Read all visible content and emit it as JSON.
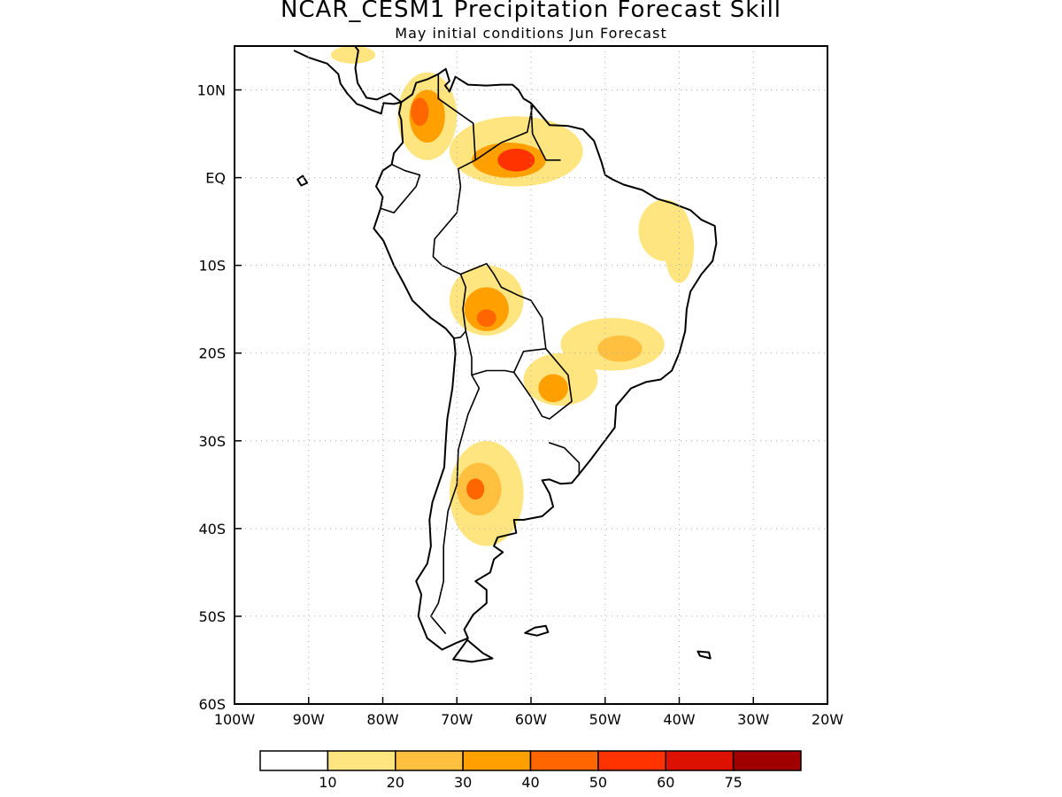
{
  "title": "NCAR_CESM1 Precipitation Forecast Skill",
  "subtitle": "May initial conditions  Jun Forecast",
  "map": {
    "lon_range": [
      -100,
      -20
    ],
    "lat_range": [
      -60,
      15
    ],
    "lon_ticks": [
      {
        "value": -100,
        "label": "100W"
      },
      {
        "value": -90,
        "label": "90W"
      },
      {
        "value": -80,
        "label": "80W"
      },
      {
        "value": -70,
        "label": "70W"
      },
      {
        "value": -60,
        "label": "60W"
      },
      {
        "value": -50,
        "label": "50W"
      },
      {
        "value": -40,
        "label": "40W"
      },
      {
        "value": -30,
        "label": "30W"
      },
      {
        "value": -20,
        "label": "20W"
      }
    ],
    "lat_ticks": [
      {
        "value": 10,
        "label": "10N"
      },
      {
        "value": 0,
        "label": "EQ"
      },
      {
        "value": -10,
        "label": "10S"
      },
      {
        "value": -20,
        "label": "20S"
      },
      {
        "value": -30,
        "label": "30S"
      },
      {
        "value": -40,
        "label": "40S"
      },
      {
        "value": -50,
        "label": "50S"
      },
      {
        "value": -60,
        "label": "60S"
      }
    ],
    "grid": "dotted"
  },
  "colorbar": {
    "colors": [
      "#ffffff",
      "#ffe57f",
      "#ffbf3f",
      "#ff9f00",
      "#ff6600",
      "#ff3300",
      "#dd1100",
      "#a00000"
    ],
    "labels": [
      "10",
      "20",
      "30",
      "40",
      "50",
      "60",
      "75"
    ]
  },
  "skill_regions": [
    {
      "level": 1,
      "lon": -74,
      "lat": 7,
      "rx": 4,
      "ry": 5
    },
    {
      "level": 3,
      "lon": -74,
      "lat": 7,
      "rx": 2.4,
      "ry": 3
    },
    {
      "level": 4,
      "lon": -75,
      "lat": 7.5,
      "rx": 1.2,
      "ry": 1.6
    },
    {
      "level": 1,
      "lon": -62,
      "lat": 3,
      "rx": 9,
      "ry": 4
    },
    {
      "level": 3,
      "lon": -63,
      "lat": 2,
      "rx": 5,
      "ry": 2
    },
    {
      "level": 5,
      "lon": -62,
      "lat": 2,
      "rx": 2.5,
      "ry": 1.3
    },
    {
      "level": 1,
      "lon": -42,
      "lat": -6,
      "rx": 3.5,
      "ry": 3.5
    },
    {
      "level": 1,
      "lon": -40,
      "lat": -8,
      "rx": 2,
      "ry": 4
    },
    {
      "level": 1,
      "lon": -66,
      "lat": -14,
      "rx": 5,
      "ry": 4
    },
    {
      "level": 3,
      "lon": -66,
      "lat": -15,
      "rx": 3,
      "ry": 2.5
    },
    {
      "level": 4,
      "lon": -66,
      "lat": -16,
      "rx": 1.3,
      "ry": 1
    },
    {
      "level": 1,
      "lon": -49,
      "lat": -19,
      "rx": 7,
      "ry": 3
    },
    {
      "level": 2,
      "lon": -48,
      "lat": -19.5,
      "rx": 3,
      "ry": 1.5
    },
    {
      "level": 1,
      "lon": -56,
      "lat": -23,
      "rx": 5,
      "ry": 3
    },
    {
      "level": 3,
      "lon": -57,
      "lat": -24,
      "rx": 2,
      "ry": 1.6
    },
    {
      "level": 1,
      "lon": -66,
      "lat": -36,
      "rx": 5,
      "ry": 6
    },
    {
      "level": 2,
      "lon": -67,
      "lat": -35.5,
      "rx": 3,
      "ry": 3
    },
    {
      "level": 4,
      "lon": -67.5,
      "lat": -35.5,
      "rx": 1.2,
      "ry": 1.2
    },
    {
      "level": 1,
      "lon": -84,
      "lat": 14,
      "rx": 3,
      "ry": 1
    }
  ]
}
